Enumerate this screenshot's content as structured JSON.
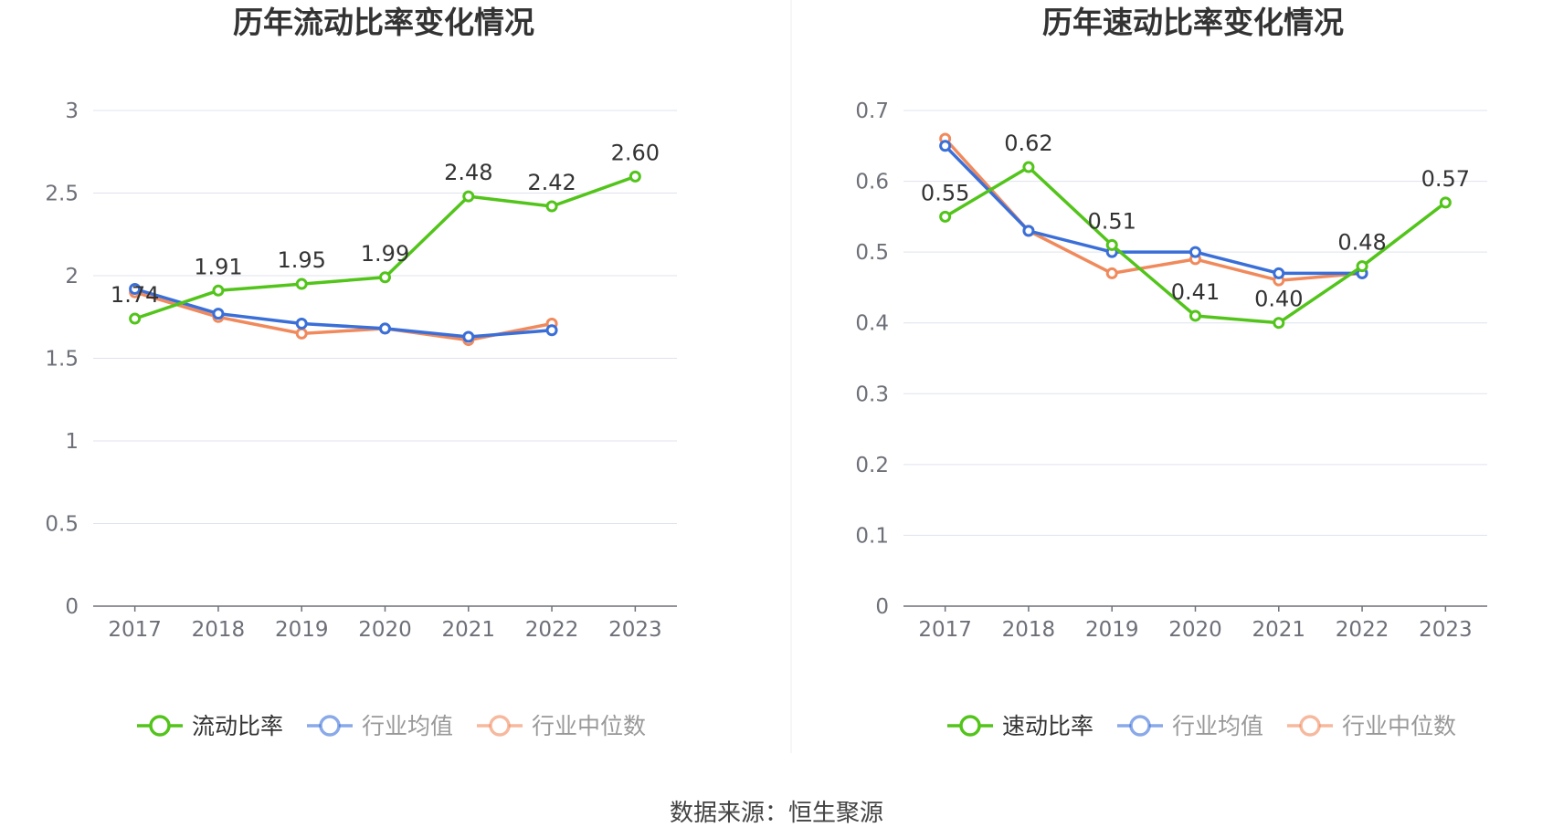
{
  "colors": {
    "main": "#52c41a",
    "avg": "#3a6fd8",
    "median": "#f08a5d",
    "grid": "#dfe3ee",
    "axis": "#6e7079",
    "tick": "#6e7079",
    "label": "#333333",
    "divider": "#eeeeee"
  },
  "chart_data": [
    {
      "type": "line",
      "title": "历年流动比率变化情况",
      "categories": [
        "2017",
        "2018",
        "2019",
        "2020",
        "2021",
        "2022",
        "2023"
      ],
      "y_ticks": [
        "0",
        "0.5",
        "1",
        "1.5",
        "2",
        "2.5",
        "3"
      ],
      "ylim": [
        0,
        3
      ],
      "series": [
        {
          "name": "流动比率",
          "role": "main",
          "values": [
            1.74,
            1.91,
            1.95,
            1.99,
            2.48,
            2.42,
            2.6
          ],
          "labels": [
            "1.74",
            "1.91",
            "1.95",
            "1.99",
            "2.48",
            "2.42",
            "2.60"
          ]
        },
        {
          "name": "行业均值",
          "role": "avg",
          "values": [
            1.92,
            1.77,
            1.71,
            1.68,
            1.63,
            1.67,
            null
          ]
        },
        {
          "name": "行业中位数",
          "role": "median",
          "values": [
            1.9,
            1.75,
            1.65,
            1.68,
            1.61,
            1.71,
            null
          ]
        }
      ],
      "legend_position": "bottom"
    },
    {
      "type": "line",
      "title": "历年速动比率变化情况",
      "categories": [
        "2017",
        "2018",
        "2019",
        "2020",
        "2021",
        "2022",
        "2023"
      ],
      "y_ticks": [
        "0",
        "0.1",
        "0.2",
        "0.3",
        "0.4",
        "0.5",
        "0.6",
        "0.7"
      ],
      "ylim": [
        0,
        0.7
      ],
      "series": [
        {
          "name": "速动比率",
          "role": "main",
          "values": [
            0.55,
            0.62,
            0.51,
            0.41,
            0.4,
            0.48,
            0.57
          ],
          "labels": [
            "0.55",
            "0.62",
            "0.51",
            "0.41",
            "0.40",
            "0.48",
            "0.57"
          ]
        },
        {
          "name": "行业均值",
          "role": "avg",
          "values": [
            0.65,
            0.53,
            0.5,
            0.5,
            0.47,
            0.47,
            null
          ]
        },
        {
          "name": "行业中位数",
          "role": "median",
          "values": [
            0.66,
            0.53,
            0.47,
            0.49,
            0.46,
            0.47,
            null
          ]
        }
      ],
      "legend_position": "bottom"
    }
  ],
  "footer": {
    "source": "数据来源：恒生聚源"
  }
}
